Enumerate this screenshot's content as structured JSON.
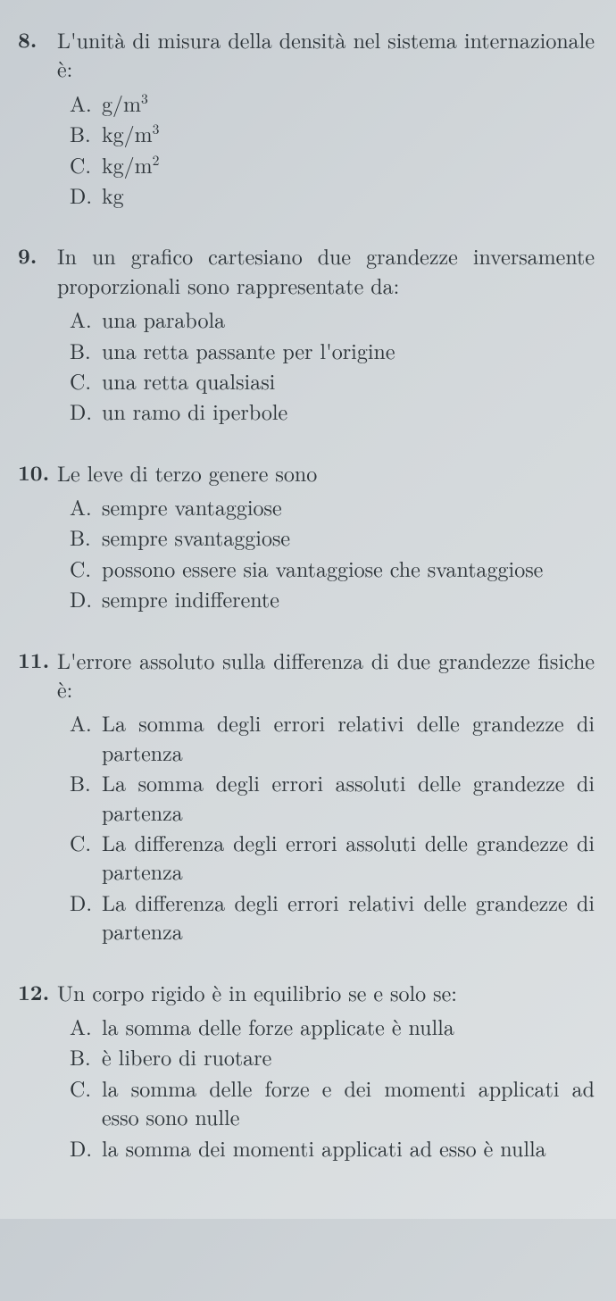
{
  "questions": [
    {
      "number": "8.",
      "text": "L'unità di misura della densità nel sistema internazionale è:",
      "options": [
        {
          "label": "A.",
          "html": "g/m<sup>3</sup>"
        },
        {
          "label": "B.",
          "html": "kg/m<sup>3</sup>"
        },
        {
          "label": "C.",
          "html": "kg/m<sup>2</sup>"
        },
        {
          "label": "D.",
          "html": "kg"
        }
      ]
    },
    {
      "number": "9.",
      "text": "In un grafico cartesiano due grandezze inversamente proporzionali sono rappresentate da:",
      "options": [
        {
          "label": "A.",
          "text": "una parabola"
        },
        {
          "label": "B.",
          "text": "una retta passante per l'origine"
        },
        {
          "label": "C.",
          "text": "una retta qualsiasi"
        },
        {
          "label": "D.",
          "text": "un ramo di iperbole"
        }
      ]
    },
    {
      "number": "10.",
      "text": "Le leve di terzo genere sono",
      "options": [
        {
          "label": "A.",
          "text": "sempre vantaggiose"
        },
        {
          "label": "B.",
          "text": "sempre svantaggiose"
        },
        {
          "label": "C.",
          "text": "possono essere sia vantaggiose che svantaggiose"
        },
        {
          "label": "D.",
          "text": "sempre indifferente"
        }
      ]
    },
    {
      "number": "11.",
      "text": "L'errore assoluto sulla differenza di due grandezze fisiche è:",
      "options": [
        {
          "label": "A.",
          "text": "La somma degli errori relativi delle grandezze di partenza"
        },
        {
          "label": "B.",
          "text": "La somma degli errori assoluti delle grandezze di partenza"
        },
        {
          "label": "C.",
          "text": "La differenza degli errori assoluti delle grandezze di partenza"
        },
        {
          "label": "D.",
          "text": "La differenza degli errori relativi delle grandezze di partenza"
        }
      ]
    },
    {
      "number": "12.",
      "text": "Un corpo rigido è in equilibrio se e solo se:",
      "options": [
        {
          "label": "A.",
          "text": "la somma delle forze applicate è nulla"
        },
        {
          "label": "B.",
          "text": "è libero di ruotare"
        },
        {
          "label": "C.",
          "text": "la somma delle forze e dei momenti applicati ad esso sono nulle"
        },
        {
          "label": "D.",
          "text": "la somma dei momenti applicati ad esso è nulla"
        }
      ]
    }
  ]
}
